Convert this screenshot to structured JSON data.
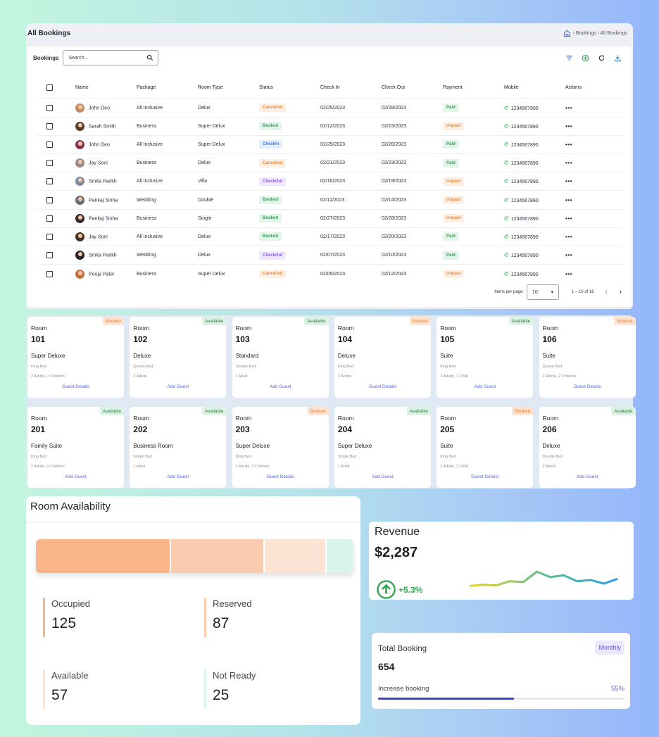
{
  "bookings": {
    "title": "All Bookings",
    "breadcrumb": "› Bookings › All Bookings",
    "toolbar_label": "Bookings",
    "search_placeholder": "Search...",
    "columns": [
      "Name",
      "Package",
      "Room Type",
      "Status",
      "Check In",
      "Check Out",
      "Payment",
      "Mobile",
      "Actions"
    ],
    "rows": [
      {
        "name": "John Deo",
        "package": "All Inclusive",
        "room_type": "Delux",
        "status": "Cancelled",
        "check_in": "02/25/2023",
        "check_out": "02/28/2023",
        "payment": "Paid",
        "mobile": "1234567890",
        "avatar_color": "#c98a62"
      },
      {
        "name": "Sarah Smith",
        "package": "Business",
        "room_type": "Super Delux",
        "status": "Booked",
        "check_in": "02/12/2023",
        "check_out": "02/15/2023",
        "payment": "Unpaid",
        "mobile": "1234567890",
        "avatar_color": "#5a3a28"
      },
      {
        "name": "John Deo",
        "package": "All Inclusive",
        "room_type": "Super Delux",
        "status": "CheckIn",
        "check_in": "02/25/2023",
        "check_out": "02/26/2023",
        "payment": "Paid",
        "mobile": "1234567890",
        "avatar_color": "#8a3050"
      },
      {
        "name": "Jay Soni",
        "package": "Business",
        "room_type": "Delux",
        "status": "Cancelled",
        "check_in": "02/21/2023",
        "check_out": "02/23/2023",
        "payment": "Paid",
        "mobile": "1234567890",
        "avatar_color": "#9a8a8a"
      },
      {
        "name": "Smita Parikh",
        "package": "All Inclusive",
        "room_type": "Villa",
        "status": "CheckOut",
        "check_in": "02/16/2023",
        "check_out": "02/19/2023",
        "payment": "Unpaid",
        "mobile": "1234567890",
        "avatar_color": "#7a8aa0"
      },
      {
        "name": "Pankaj Sinha",
        "package": "Wedding",
        "room_type": "Double",
        "status": "Booked",
        "check_in": "02/11/2023",
        "check_out": "02/14/2023",
        "payment": "Unpaid",
        "mobile": "1234567890",
        "avatar_color": "#6a6a7a"
      },
      {
        "name": "Pankaj Sinha",
        "package": "Business",
        "room_type": "Single",
        "status": "Booked",
        "check_in": "02/27/2023",
        "check_out": "02/28/2023",
        "payment": "Unpaid",
        "mobile": "1234567890",
        "avatar_color": "#3a2a2a"
      },
      {
        "name": "Jay Soni",
        "package": "All Inclusive",
        "room_type": "Delux",
        "status": "Booked",
        "check_in": "02/17/2023",
        "check_out": "02/20/2023",
        "payment": "Paid",
        "mobile": "1234567890",
        "avatar_color": "#4a3020"
      },
      {
        "name": "Smita Parikh",
        "package": "Wedding",
        "room_type": "Delux",
        "status": "CheckOut",
        "check_in": "02/07/2023",
        "check_out": "02/10/2023",
        "payment": "Paid",
        "mobile": "1234567890",
        "avatar_color": "#2a2020"
      },
      {
        "name": "Pooja Patel",
        "package": "Business",
        "room_type": "Super Delux",
        "status": "Cancelled",
        "check_in": "02/09/2023",
        "check_out": "02/12/2023",
        "payment": "Unpaid",
        "mobile": "1234567890",
        "avatar_color": "#c07040"
      }
    ],
    "pagination": {
      "items_label": "Items per page:",
      "per_page": "10",
      "range": "1 – 10 of 16"
    }
  },
  "rooms": [
    {
      "label": "Room",
      "number": "101",
      "type": "Super Deluxe",
      "bed": "King Bed",
      "occupancy": "2 Adults, 2 Children",
      "status": "Booked",
      "action": "Guest Details"
    },
    {
      "label": "Room",
      "number": "102",
      "type": "Deluxe",
      "bed": "Queen Bed",
      "occupancy": "2 Adults",
      "status": "Available",
      "action": "Add Guest"
    },
    {
      "label": "Room",
      "number": "103",
      "type": "Standard",
      "bed": "Double Bed",
      "occupancy": "1 Adult",
      "status": "Available",
      "action": "Add Guest"
    },
    {
      "label": "Room",
      "number": "104",
      "type": "Deluxe",
      "bed": "King Bed",
      "occupancy": "2 Adults",
      "status": "Booked",
      "action": "Guest Details"
    },
    {
      "label": "Room",
      "number": "105",
      "type": "Suite",
      "bed": "King Bed",
      "occupancy": "2 Adults, 1 Child",
      "status": "Available",
      "action": "Add Guest"
    },
    {
      "label": "Room",
      "number": "106",
      "type": "Suite",
      "bed": "Queen Bed",
      "occupancy": "2 Adults, 2 Children",
      "status": "Booked",
      "action": "Guest Details"
    },
    {
      "label": "Room",
      "number": "201",
      "type": "Family Suite",
      "bed": "King Bed",
      "occupancy": "2 Adults, 3 Children",
      "status": "Available",
      "action": "Add Guest"
    },
    {
      "label": "Room",
      "number": "202",
      "type": "Business Room",
      "bed": "Single Bed",
      "occupancy": "1 Adult",
      "status": "Available",
      "action": "Add Guest"
    },
    {
      "label": "Room",
      "number": "203",
      "type": "Super Deluxe",
      "bed": "King Bed",
      "occupancy": "2 Adults, 2 Children",
      "status": "Booked",
      "action": "Guest Details"
    },
    {
      "label": "Room",
      "number": "204",
      "type": "Super Deluxe",
      "bed": "Single Bed",
      "occupancy": "1 Adult",
      "status": "Available",
      "action": "Add Guest"
    },
    {
      "label": "Room",
      "number": "205",
      "type": "Suite",
      "bed": "King Bed",
      "occupancy": "2 Adults, 1 Child",
      "status": "Booked",
      "action": "Guest Details"
    },
    {
      "label": "Room",
      "number": "206",
      "type": "Deluxe",
      "bed": "Double Bed",
      "occupancy": "2 Adults",
      "status": "Available",
      "action": "Add Guest"
    }
  ],
  "availability": {
    "title": "Room Availability",
    "stats": [
      {
        "label": "Occupied",
        "value": "125",
        "color": "#f9b489"
      },
      {
        "label": "Reserved",
        "value": "87",
        "color": "#fbcbb0"
      },
      {
        "label": "Available",
        "value": "57",
        "color": "#fde3d4"
      },
      {
        "label": "Not Ready",
        "value": "25",
        "color": "#d9f5ea"
      }
    ]
  },
  "revenue": {
    "title": "Revenue",
    "value": "$2,287",
    "change": "+5.3%",
    "sparkline": [
      0.25,
      0.3,
      0.28,
      0.45,
      0.42,
      0.85,
      0.62,
      0.7,
      0.45,
      0.5,
      0.35,
      0.55
    ],
    "gradient": [
      "#f2d027",
      "#5cc08a",
      "#2a9be0"
    ]
  },
  "total_booking": {
    "title": "Total Booking",
    "period": "Monthly",
    "value": "654",
    "increase_label": "Increase booking",
    "increase_pct": "55%",
    "progress": 0.55
  },
  "colors": {
    "accent": "#2fa84f",
    "primary": "#3c3fc9"
  }
}
